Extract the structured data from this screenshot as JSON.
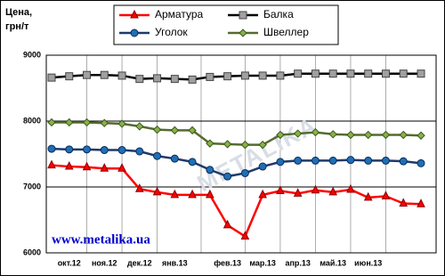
{
  "chart_data": {
    "type": "line",
    "ylabel_lines": [
      "Цена,",
      "грн/т"
    ],
    "watermark": "METALIKA",
    "site": "www.metalika.ua",
    "categories": [
      null,
      "окт.12",
      null,
      "ноя.12",
      null,
      "дек.12",
      null,
      "янв.13",
      null,
      null,
      "фев.13",
      null,
      "мар.13",
      null,
      "апр.13",
      null,
      "май.13",
      null,
      "июн.13",
      null,
      null,
      null
    ],
    "ylim": [
      6000,
      9000
    ],
    "yticks": [
      6000,
      7000,
      8000,
      9000
    ],
    "grid": true,
    "series": [
      {
        "name": "Арматура",
        "color": "#ff0000",
        "marker": "triangle",
        "marker_color": "#ff0000",
        "values": [
          7330,
          7310,
          7300,
          7280,
          7280,
          6970,
          6920,
          6880,
          6880,
          6880,
          6420,
          6250,
          6880,
          6940,
          6900,
          6950,
          6920,
          6960,
          6840,
          6860,
          6750,
          6740
        ]
      },
      {
        "name": "Балка",
        "color": "#000000",
        "marker": "square",
        "marker_color": "#a0a0a0",
        "values": [
          8660,
          8680,
          8700,
          8700,
          8690,
          8640,
          8650,
          8640,
          8630,
          8670,
          8680,
          8690,
          8690,
          8690,
          8720,
          8720,
          8720,
          8720,
          8720,
          8720,
          8720,
          8720
        ]
      },
      {
        "name": "Уголок",
        "color": "#1f3a6a",
        "marker": "circle",
        "marker_color": "#1f6fb5",
        "values": [
          7580,
          7570,
          7570,
          7560,
          7560,
          7540,
          7470,
          7430,
          7380,
          7260,
          7160,
          7210,
          7310,
          7380,
          7400,
          7400,
          7400,
          7410,
          7400,
          7400,
          7390,
          7360
        ]
      },
      {
        "name": "Швеллер",
        "color": "#556b2f",
        "marker": "diamond",
        "marker_color": "#8ab04a",
        "values": [
          7980,
          7980,
          7980,
          7970,
          7960,
          7920,
          7870,
          7860,
          7860,
          7660,
          7650,
          7640,
          7640,
          7790,
          7810,
          7830,
          7800,
          7790,
          7790,
          7790,
          7790,
          7780
        ]
      }
    ]
  }
}
